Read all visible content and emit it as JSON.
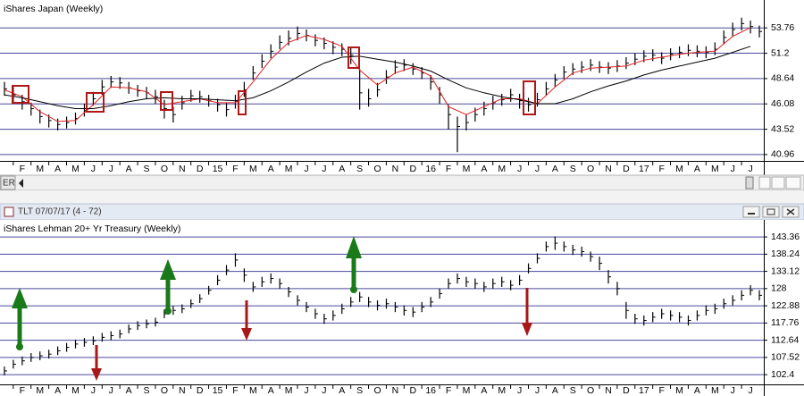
{
  "window": {
    "title": "TLT 07/07/17 (4 - 72)"
  },
  "scrollbar": {
    "label": "ER"
  },
  "chart_data": [
    {
      "type": "ohlc",
      "title": "iShares Japan (Weekly)",
      "color": "#000000",
      "grid": true,
      "grid_color": "#4a4a9c",
      "xlim": [
        -0.25,
        42.75
      ],
      "ylim": [
        40.5,
        56.4
      ],
      "yticks": [
        53.76,
        51.2,
        48.64,
        46.08,
        43.52,
        40.96
      ],
      "xticks": [
        {
          "value": 1,
          "label": "F"
        },
        {
          "value": 2,
          "label": "M"
        },
        {
          "value": 3,
          "label": "A"
        },
        {
          "value": 4,
          "label": "M"
        },
        {
          "value": 5,
          "label": "J"
        },
        {
          "value": 6,
          "label": "J"
        },
        {
          "value": 7,
          "label": "A"
        },
        {
          "value": 8,
          "label": "S"
        },
        {
          "value": 9,
          "label": "O"
        },
        {
          "value": 10,
          "label": "N"
        },
        {
          "value": 11,
          "label": "D"
        },
        {
          "value": 12,
          "label": "15"
        },
        {
          "value": 13,
          "label": "F"
        },
        {
          "value": 14,
          "label": "M"
        },
        {
          "value": 15,
          "label": "A"
        },
        {
          "value": 16,
          "label": "M"
        },
        {
          "value": 17,
          "label": "J"
        },
        {
          "value": 18,
          "label": "J"
        },
        {
          "value": 19,
          "label": "A"
        },
        {
          "value": 20,
          "label": "S"
        },
        {
          "value": 21,
          "label": "O"
        },
        {
          "value": 22,
          "label": "N"
        },
        {
          "value": 23,
          "label": "D"
        },
        {
          "value": 24,
          "label": "16"
        },
        {
          "value": 25,
          "label": "F"
        },
        {
          "value": 26,
          "label": "M"
        },
        {
          "value": 27,
          "label": "A"
        },
        {
          "value": 28,
          "label": "M"
        },
        {
          "value": 29,
          "label": "J"
        },
        {
          "value": 30,
          "label": "J"
        },
        {
          "value": 31,
          "label": "A"
        },
        {
          "value": 32,
          "label": "S"
        },
        {
          "value": 33,
          "label": "O"
        },
        {
          "value": 34,
          "label": "N"
        },
        {
          "value": 35,
          "label": "D"
        },
        {
          "value": 36,
          "label": "17"
        },
        {
          "value": 37,
          "label": "F"
        },
        {
          "value": 38,
          "label": "M"
        },
        {
          "value": 39,
          "label": "A"
        },
        {
          "value": 40,
          "label": "M"
        },
        {
          "value": 41,
          "label": "J"
        },
        {
          "value": 42,
          "label": "J"
        }
      ],
      "x": [
        0,
        0.5,
        1,
        1.5,
        2,
        2.5,
        3,
        3.5,
        4,
        4.5,
        5,
        5.5,
        6,
        6.5,
        7,
        7.5,
        8,
        8.5,
        9,
        9.5,
        10,
        10.5,
        11,
        11.5,
        12,
        12.5,
        13,
        13.5,
        14,
        14.5,
        15,
        15.5,
        16,
        16.5,
        17,
        17.5,
        18,
        18.5,
        19,
        19.5,
        20,
        20.5,
        21,
        21.5,
        22,
        22.5,
        23,
        23.5,
        24,
        24.5,
        25,
        25.5,
        26,
        26.5,
        27,
        27.5,
        28,
        28.5,
        29,
        29.5,
        30,
        30.5,
        31,
        31.5,
        32,
        32.5,
        33,
        33.5,
        34,
        34.5,
        35,
        35.5,
        36,
        36.5,
        37,
        37.5,
        38,
        38.5,
        39,
        39.5,
        40,
        40.5,
        41,
        41.5,
        42,
        42.5
      ],
      "high": [
        48.3,
        47.8,
        47.0,
        46.2,
        45.5,
        45.0,
        44.6,
        44.8,
        45.2,
        46.1,
        47.3,
        48.5,
        48.9,
        48.8,
        48.3,
        48.0,
        47.8,
        47.5,
        46.5,
        45.8,
        46.9,
        47.5,
        47.4,
        47.0,
        46.6,
        46.2,
        47.0,
        48.3,
        49.9,
        51.1,
        52.1,
        53.0,
        53.5,
        53.9,
        53.6,
        53.1,
        52.8,
        52.4,
        52.2,
        51.8,
        49.6,
        47.6,
        48.2,
        49.5,
        50.5,
        50.6,
        50.2,
        49.8,
        49.0,
        47.8,
        46.0,
        44.8,
        45.0,
        45.7,
        46.3,
        46.9,
        47.1,
        47.6,
        47.1,
        46.7,
        47.2,
        48.3,
        49.1,
        49.9,
        50.2,
        50.4,
        50.6,
        50.4,
        50.3,
        50.5,
        50.8,
        51.2,
        51.5,
        51.6,
        51.3,
        51.7,
        51.9,
        52.1,
        52.0,
        51.9,
        52.3,
        53.5,
        54.3,
        54.8,
        54.5,
        54.0
      ],
      "low": [
        46.9,
        46.2,
        45.5,
        44.9,
        44.1,
        43.7,
        43.4,
        43.6,
        44.0,
        44.8,
        45.9,
        47.0,
        47.7,
        47.6,
        47.1,
        46.8,
        46.6,
        46.1,
        44.6,
        44.2,
        45.5,
        46.3,
        46.2,
        45.8,
        45.3,
        44.8,
        45.6,
        46.8,
        48.5,
        49.7,
        50.7,
        51.6,
        52.0,
        52.5,
        52.4,
        51.9,
        51.6,
        51.1,
        50.9,
        50.1,
        45.5,
        45.8,
        46.8,
        48.1,
        49.1,
        49.4,
        49.0,
        48.6,
        47.5,
        46.1,
        43.5,
        41.2,
        43.4,
        44.3,
        44.9,
        45.5,
        45.9,
        46.3,
        45.6,
        45.3,
        45.8,
        46.9,
        47.8,
        48.6,
        49.0,
        49.2,
        49.4,
        49.2,
        49.1,
        49.3,
        49.6,
        50.0,
        50.3,
        50.4,
        50.1,
        50.5,
        50.7,
        50.9,
        50.8,
        50.7,
        51.0,
        52.1,
        52.9,
        53.5,
        53.2,
        52.8
      ],
      "close": [
        47.6,
        47.0,
        46.3,
        45.6,
        44.8,
        44.4,
        44.0,
        44.2,
        44.6,
        45.4,
        46.6,
        47.8,
        48.3,
        48.2,
        47.7,
        47.4,
        47.2,
        46.8,
        45.6,
        45.0,
        46.2,
        46.9,
        46.8,
        46.4,
        46.0,
        45.5,
        46.3,
        47.5,
        49.2,
        50.4,
        51.4,
        52.3,
        52.7,
        53.2,
        53.0,
        52.5,
        52.2,
        51.8,
        51.6,
        51.0,
        47.2,
        46.6,
        47.5,
        48.8,
        49.8,
        50.0,
        49.6,
        49.2,
        48.3,
        47.0,
        45.0,
        43.8,
        44.2,
        45.0,
        45.6,
        46.2,
        46.5,
        47.0,
        46.4,
        46.0,
        46.5,
        47.6,
        48.5,
        49.3,
        49.6,
        49.8,
        50.0,
        49.8,
        49.7,
        49.9,
        50.2,
        50.6,
        50.9,
        51.0,
        50.7,
        51.1,
        51.3,
        51.5,
        51.4,
        51.3,
        51.6,
        52.8,
        53.6,
        54.2,
        53.9,
        53.4
      ],
      "lines": [
        {
          "color": "#e02020",
          "x": [
            0,
            1,
            2,
            3,
            4,
            5,
            6,
            7,
            8,
            9,
            10,
            11,
            12,
            13,
            14,
            15,
            16,
            17,
            18,
            19,
            20,
            21,
            22,
            23,
            24,
            25,
            26,
            27,
            28,
            29,
            30,
            31,
            32,
            33,
            34,
            35,
            36,
            37,
            38,
            39,
            40,
            41,
            42
          ],
          "values": [
            47.5,
            46.8,
            45.3,
            44.3,
            44.4,
            46.0,
            47.8,
            47.7,
            47.3,
            46.0,
            46.3,
            46.6,
            46.2,
            46.2,
            48.3,
            50.6,
            52.3,
            53.0,
            52.6,
            51.9,
            49.5,
            48.0,
            49.2,
            49.8,
            48.9,
            45.8,
            45.0,
            45.8,
            46.6,
            46.6,
            46.1,
            47.8,
            49.2,
            49.7,
            49.8,
            49.9,
            50.5,
            50.8,
            51.1,
            51.3,
            51.4,
            52.9,
            53.8
          ]
        },
        {
          "color": "#000000",
          "x": [
            0,
            1,
            2,
            3,
            4,
            5,
            6,
            7,
            8,
            9,
            10,
            11,
            12,
            13,
            14,
            15,
            16,
            17,
            18,
            19,
            20,
            21,
            22,
            23,
            24,
            25,
            26,
            27,
            28,
            29,
            30,
            31,
            32,
            33,
            34,
            35,
            36,
            37,
            38,
            39,
            40,
            41,
            42
          ],
          "values": [
            47.0,
            46.7,
            46.3,
            45.9,
            45.6,
            45.6,
            45.9,
            46.3,
            46.6,
            46.7,
            46.6,
            46.6,
            46.5,
            46.4,
            46.7,
            47.4,
            48.3,
            49.3,
            50.2,
            50.8,
            50.9,
            50.6,
            50.3,
            49.9,
            49.4,
            48.5,
            47.7,
            47.2,
            46.8,
            46.5,
            46.1,
            46.1,
            46.6,
            47.3,
            47.9,
            48.4,
            49.0,
            49.5,
            49.9,
            50.3,
            50.7,
            51.3,
            51.9
          ]
        }
      ]
    },
    {
      "type": "ohlc",
      "title": "iShares Lehman 20+ Yr Treasury (Weekly)",
      "color": "#000000",
      "grid": true,
      "grid_color": "#4a4a9c",
      "xlim": [
        -0.25,
        42.75
      ],
      "ylim": [
        99.5,
        147.9
      ],
      "yticks": [
        143.36,
        138.24,
        133.12,
        128,
        122.88,
        117.76,
        112.64,
        107.52,
        102.4
      ],
      "xticks": [
        {
          "value": 1,
          "label": "F"
        },
        {
          "value": 2,
          "label": "M"
        },
        {
          "value": 3,
          "label": "A"
        },
        {
          "value": 4,
          "label": "M"
        },
        {
          "value": 5,
          "label": "J"
        },
        {
          "value": 6,
          "label": "J"
        },
        {
          "value": 7,
          "label": "A"
        },
        {
          "value": 8,
          "label": "S"
        },
        {
          "value": 9,
          "label": "O"
        },
        {
          "value": 10,
          "label": "N"
        },
        {
          "value": 11,
          "label": "D"
        },
        {
          "value": 12,
          "label": "15"
        },
        {
          "value": 13,
          "label": "F"
        },
        {
          "value": 14,
          "label": "M"
        },
        {
          "value": 15,
          "label": "A"
        },
        {
          "value": 16,
          "label": "M"
        },
        {
          "value": 17,
          "label": "J"
        },
        {
          "value": 18,
          "label": "J"
        },
        {
          "value": 19,
          "label": "A"
        },
        {
          "value": 20,
          "label": "S"
        },
        {
          "value": 21,
          "label": "O"
        },
        {
          "value": 22,
          "label": "N"
        },
        {
          "value": 23,
          "label": "D"
        },
        {
          "value": 24,
          "label": "16"
        },
        {
          "value": 25,
          "label": "F"
        },
        {
          "value": 26,
          "label": "M"
        },
        {
          "value": 27,
          "label": "A"
        },
        {
          "value": 28,
          "label": "M"
        },
        {
          "value": 29,
          "label": "J"
        },
        {
          "value": 30,
          "label": "J"
        },
        {
          "value": 31,
          "label": "A"
        },
        {
          "value": 32,
          "label": "S"
        },
        {
          "value": 33,
          "label": "O"
        },
        {
          "value": 34,
          "label": "N"
        },
        {
          "value": 35,
          "label": "D"
        },
        {
          "value": 36,
          "label": "17"
        },
        {
          "value": 37,
          "label": "F"
        },
        {
          "value": 38,
          "label": "M"
        },
        {
          "value": 39,
          "label": "A"
        },
        {
          "value": 40,
          "label": "M"
        },
        {
          "value": 41,
          "label": "J"
        },
        {
          "value": 42,
          "label": "J"
        }
      ],
      "x": [
        0,
        0.5,
        1,
        1.5,
        2,
        2.5,
        3,
        3.5,
        4,
        4.5,
        5,
        5.5,
        6,
        6.5,
        7,
        7.5,
        8,
        8.5,
        9,
        9.5,
        10,
        10.5,
        11,
        11.5,
        12,
        12.5,
        13,
        13.5,
        14,
        14.5,
        15,
        15.5,
        16,
        16.5,
        17,
        17.5,
        18,
        18.5,
        19,
        19.5,
        20,
        20.5,
        21,
        21.5,
        22,
        22.5,
        23,
        23.5,
        24,
        24.5,
        25,
        25.5,
        26,
        26.5,
        27,
        27.5,
        28,
        28.5,
        29,
        29.5,
        30,
        30.5,
        31,
        31.5,
        32,
        32.5,
        33,
        33.5,
        34,
        34.5,
        35,
        35.5,
        36,
        36.5,
        37,
        37.5,
        38,
        38.5,
        39,
        39.5,
        40,
        40.5,
        41,
        41.5,
        42,
        42.5
      ],
      "high": [
        104.8,
        106.8,
        107.8,
        108.8,
        109.3,
        109.8,
        110.8,
        111.8,
        112.8,
        113.3,
        113.8,
        114.8,
        115.3,
        115.8,
        117.3,
        118.3,
        118.8,
        119.3,
        121.8,
        122.8,
        123.3,
        124.8,
        126.3,
        128.8,
        132.0,
        135.0,
        138.5,
        134.0,
        130.0,
        131.5,
        132.5,
        131.0,
        128.5,
        126.0,
        124.0,
        122.0,
        120.5,
        121.5,
        123.5,
        125.5,
        127.0,
        125.5,
        124.5,
        125.0,
        124.0,
        123.0,
        122.5,
        124.0,
        125.5,
        128.0,
        131.0,
        132.5,
        131.5,
        131.0,
        130.0,
        131.0,
        131.5,
        130.5,
        132.0,
        135.5,
        138.5,
        142.0,
        143.5,
        142.0,
        141.0,
        140.5,
        139.0,
        137.5,
        133.5,
        130.0,
        124.0,
        120.5,
        120.0,
        121.0,
        122.0,
        121.5,
        121.0,
        120.0,
        121.5,
        123.0,
        123.5,
        125.0,
        126.0,
        127.5,
        129.0,
        127.5
      ],
      "low": [
        102.2,
        104.2,
        105.2,
        106.2,
        106.7,
        107.2,
        108.2,
        109.2,
        110.2,
        110.7,
        111.2,
        112.2,
        112.7,
        113.2,
        114.7,
        115.7,
        116.2,
        116.7,
        119.2,
        120.2,
        120.7,
        122.2,
        123.7,
        126.2,
        129.0,
        132.0,
        134.5,
        130.0,
        127.0,
        128.5,
        129.5,
        128.0,
        125.5,
        123.0,
        121.0,
        119.0,
        117.5,
        118.5,
        120.5,
        122.5,
        124.0,
        122.5,
        121.5,
        122.0,
        121.0,
        120.0,
        119.5,
        121.0,
        122.5,
        125.0,
        128.0,
        129.5,
        128.5,
        128.0,
        127.0,
        128.0,
        128.5,
        127.5,
        129.0,
        132.5,
        135.5,
        139.0,
        139.5,
        139.0,
        138.0,
        137.5,
        136.0,
        133.5,
        129.5,
        126.0,
        119.0,
        117.5,
        117.0,
        118.0,
        119.0,
        118.5,
        118.0,
        117.0,
        118.5,
        120.0,
        120.5,
        122.0,
        123.0,
        124.5,
        126.0,
        124.5
      ],
      "close": [
        103.5,
        105.5,
        106.5,
        107.5,
        108.0,
        108.5,
        109.5,
        110.5,
        111.5,
        112.0,
        112.5,
        113.5,
        114.0,
        114.5,
        116.0,
        117.0,
        117.5,
        118.0,
        120.5,
        121.5,
        122.0,
        123.5,
        125.0,
        127.5,
        130.5,
        133.5,
        136.5,
        132.0,
        128.5,
        130.0,
        131.0,
        129.5,
        127.0,
        124.5,
        122.5,
        120.5,
        119.0,
        120.0,
        122.0,
        124.0,
        125.5,
        124.0,
        123.0,
        123.5,
        122.5,
        121.5,
        121.0,
        122.5,
        124.0,
        126.5,
        129.5,
        131.0,
        130.0,
        129.5,
        128.5,
        129.5,
        130.0,
        129.0,
        130.5,
        134.0,
        137.0,
        140.5,
        141.5,
        140.5,
        139.5,
        139.0,
        137.5,
        135.5,
        131.5,
        128.0,
        121.5,
        119.0,
        118.5,
        119.5,
        120.5,
        120.0,
        119.5,
        118.5,
        120.0,
        121.5,
        122.0,
        123.5,
        124.5,
        126.0,
        127.5,
        126.0
      ]
    }
  ]
}
